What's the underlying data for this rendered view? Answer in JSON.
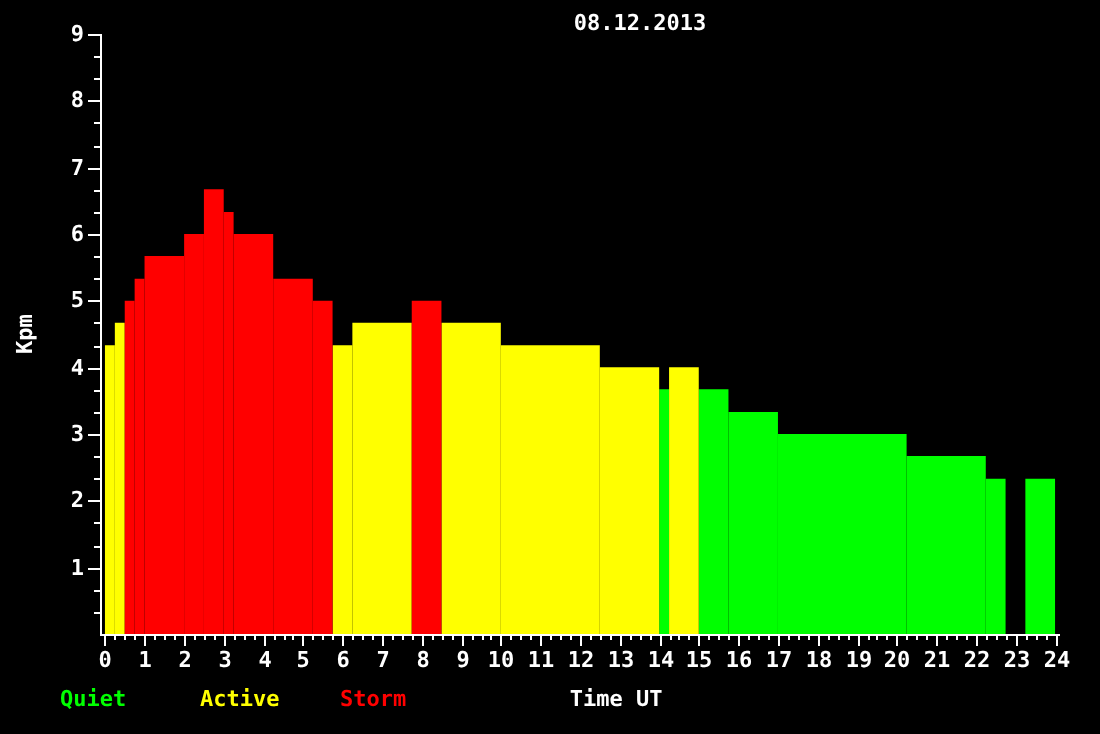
{
  "chart_data": {
    "type": "histogram",
    "title": "08.12.2013",
    "xlabel": "Time UT",
    "ylabel": "Kpm",
    "legend": "bottom left",
    "grid": false,
    "bins": [
      0,
      0.25,
      0.5,
      0.75,
      1,
      2,
      2.5,
      3,
      3.25,
      4.25,
      5.25,
      5.75,
      6.25,
      7.75,
      8.5,
      10,
      12.5,
      14,
      14.25,
      15,
      15.75,
      17,
      20.25,
      22.25,
      22.75,
      23.25,
      24
    ],
    "series": [
      {
        "name": "Quiet",
        "color": "#00ff00",
        "values": [
          null,
          null,
          null,
          null,
          null,
          null,
          null,
          null,
          null,
          null,
          null,
          null,
          null,
          null,
          null,
          null,
          null,
          3.67,
          null,
          3.67,
          3.33,
          3,
          2.67,
          2.33,
          null,
          2.33
        ]
      },
      {
        "name": "Active",
        "color": "#ffff00",
        "values": [
          4.33,
          4.67,
          null,
          null,
          null,
          null,
          null,
          null,
          null,
          null,
          null,
          4.33,
          4.67,
          null,
          4.67,
          4.33,
          4,
          null,
          4,
          null,
          null,
          null,
          null,
          null,
          null,
          null
        ]
      },
      {
        "name": "Storm",
        "color": "#ff0000",
        "values": [
          null,
          null,
          5,
          5.33,
          5.67,
          6,
          6.67,
          6.33,
          6,
          5.33,
          5,
          null,
          null,
          5,
          null,
          null,
          null,
          null,
          null,
          null,
          null,
          null,
          null,
          null,
          null,
          null
        ]
      }
    ],
    "xlim": [
      0,
      24
    ],
    "xticks": [
      0,
      {
        "value": 0.25,
        "label": null
      },
      {
        "value": 0.5,
        "label": null
      },
      {
        "value": 0.75,
        "label": null
      },
      1,
      {
        "value": 1.25,
        "label": null
      },
      {
        "value": 1.5,
        "label": null
      },
      {
        "value": 1.75,
        "label": null
      },
      2,
      {
        "value": 2.25,
        "label": null
      },
      {
        "value": 2.5,
        "label": null
      },
      {
        "value": 2.75,
        "label": null
      },
      3,
      {
        "value": 3.25,
        "label": null
      },
      {
        "value": 3.5,
        "label": null
      },
      {
        "value": 3.75,
        "label": null
      },
      4,
      {
        "value": 4.25,
        "label": null
      },
      {
        "value": 4.5,
        "label": null
      },
      {
        "value": 4.75,
        "label": null
      },
      5,
      {
        "value": 5.25,
        "label": null
      },
      {
        "value": 5.5,
        "label": null
      },
      {
        "value": 5.75,
        "label": null
      },
      6,
      {
        "value": 6.25,
        "label": null
      },
      {
        "value": 6.5,
        "label": null
      },
      {
        "value": 6.75,
        "label": null
      },
      7,
      {
        "value": 7.25,
        "label": null
      },
      {
        "value": 7.5,
        "label": null
      },
      {
        "value": 7.75,
        "label": null
      },
      8,
      {
        "value": 8.25,
        "label": null
      },
      {
        "value": 8.5,
        "label": null
      },
      {
        "value": 8.75,
        "label": null
      },
      9,
      {
        "value": 9.25,
        "label": null
      },
      {
        "value": 9.5,
        "label": null
      },
      {
        "value": 9.75,
        "label": null
      },
      10,
      {
        "value": 10.25,
        "label": null
      },
      {
        "value": 10.5,
        "label": null
      },
      {
        "value": 10.75,
        "label": null
      },
      11,
      {
        "value": 11.25,
        "label": null
      },
      {
        "value": 11.5,
        "label": null
      },
      {
        "value": 11.75,
        "label": null
      },
      12,
      {
        "value": 12.25,
        "label": null
      },
      {
        "value": 12.5,
        "label": null
      },
      {
        "value": 12.75,
        "label": null
      },
      13,
      {
        "value": 13.25,
        "label": null
      },
      {
        "value": 13.5,
        "label": null
      },
      {
        "value": 13.75,
        "label": null
      },
      14,
      {
        "value": 14.25,
        "label": null
      },
      {
        "value": 14.5,
        "label": null
      },
      {
        "value": 14.75,
        "label": null
      },
      15,
      {
        "value": 15.25,
        "label": null
      },
      {
        "value": 15.5,
        "label": null
      },
      {
        "value": 15.75,
        "label": null
      },
      16,
      {
        "value": 16.25,
        "label": null
      },
      {
        "value": 16.5,
        "label": null
      },
      {
        "value": 16.75,
        "label": null
      },
      17,
      {
        "value": 17.25,
        "label": null
      },
      {
        "value": 17.5,
        "label": null
      },
      {
        "value": 17.75,
        "label": null
      },
      18,
      {
        "value": 18.25,
        "label": null
      },
      {
        "value": 18.5,
        "label": null
      },
      {
        "value": 18.75,
        "label": null
      },
      19,
      {
        "value": 19.25,
        "label": null
      },
      {
        "value": 19.5,
        "label": null
      },
      {
        "value": 19.75,
        "label": null
      },
      20,
      {
        "value": 20.25,
        "label": null
      },
      {
        "value": 20.5,
        "label": null
      },
      {
        "value": 20.75,
        "label": null
      },
      21,
      {
        "value": 21.25,
        "label": null
      },
      {
        "value": 21.5,
        "label": null
      },
      {
        "value": 21.75,
        "label": null
      },
      22,
      {
        "value": 22.25,
        "label": null
      },
      {
        "value": 22.5,
        "label": null
      },
      {
        "value": 22.75,
        "label": null
      },
      23,
      {
        "value": 23.25,
        "label": null
      },
      {
        "value": 23.5,
        "label": null
      },
      {
        "value": 23.75,
        "label": null
      },
      24
    ],
    "ylim": [
      0,
      9
    ],
    "yticks": [
      {
        "value": 0.33,
        "label": null
      },
      {
        "value": 0.67,
        "label": null
      },
      1,
      {
        "value": 1.33,
        "label": null
      },
      {
        "value": 1.67,
        "label": null
      },
      2,
      {
        "value": 2.33,
        "label": null
      },
      {
        "value": 2.67,
        "label": null
      },
      3,
      {
        "value": 3.33,
        "label": null
      },
      {
        "value": 3.67,
        "label": null
      },
      4,
      {
        "value": 4.33,
        "label": null
      },
      {
        "value": 4.67,
        "label": null
      },
      5,
      {
        "value": 5.33,
        "label": null
      },
      {
        "value": 5.67,
        "label": null
      },
      6,
      {
        "value": 6.33,
        "label": null
      },
      {
        "value": 6.67,
        "label": null
      },
      7,
      {
        "value": 7.33,
        "label": null
      },
      {
        "value": 7.67,
        "label": null
      },
      8,
      {
        "value": 8.33,
        "label": null
      },
      {
        "value": 8.67,
        "label": null
      },
      9
    ]
  }
}
